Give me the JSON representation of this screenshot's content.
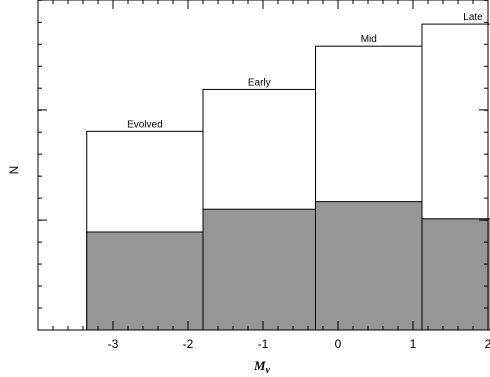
{
  "chart_data": {
    "type": "bar",
    "title": "",
    "xlabel_main": "M",
    "xlabel_sub": "v",
    "ylabel": "N",
    "xlim": [
      -4,
      2
    ],
    "ylim": [
      0,
      100
    ],
    "xticks": [
      -3,
      -2,
      -1,
      0,
      1,
      2
    ],
    "xtick_labels": [
      "-3",
      "-2",
      "-1",
      "0",
      "1",
      "2"
    ],
    "yticks": [
      0,
      33.3,
      66.7,
      100
    ],
    "bins": [
      {
        "label": "Evolved",
        "x0": -3.35,
        "x1": -1.8,
        "total": 60.2,
        "shaded": 29.7
      },
      {
        "label": "Early",
        "x0": -1.8,
        "x1": -0.3,
        "total": 72.9,
        "shaded": 36.6
      },
      {
        "label": "Mid",
        "x0": -0.3,
        "x1": 1.12,
        "total": 86.0,
        "shaded": 38.9
      },
      {
        "label": "Late",
        "x0": 1.12,
        "x1": 2.48,
        "total": 92.7,
        "shaded": 33.7
      }
    ],
    "colors": {
      "total": "#ffffff",
      "shaded": "#969696",
      "outline": "#000000"
    },
    "grid": false
  }
}
